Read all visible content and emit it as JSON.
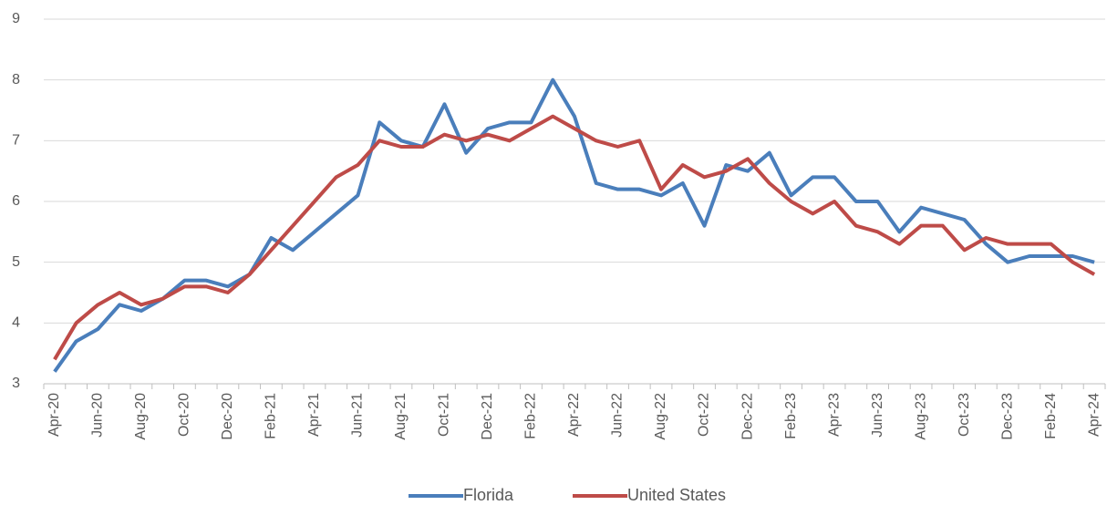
{
  "chart_data": {
    "type": "line",
    "categories": [
      "Apr-20",
      null,
      "Jun-20",
      null,
      "Aug-20",
      null,
      "Oct-20",
      null,
      "Dec-20",
      null,
      "Feb-21",
      null,
      "Apr-21",
      null,
      "Jun-21",
      null,
      "Aug-21",
      null,
      "Oct-21",
      null,
      "Dec-21",
      null,
      "Feb-22",
      null,
      "Apr-22",
      null,
      "Jun-22",
      null,
      "Aug-22",
      null,
      "Oct-22",
      null,
      "Dec-22",
      null,
      "Feb-23",
      null,
      "Apr-23",
      null,
      "Jun-23",
      null,
      "Aug-23",
      null,
      "Oct-23",
      null,
      "Dec-23",
      null,
      "Feb-24",
      null,
      "Apr-24"
    ],
    "series": [
      {
        "name": "Florida",
        "color": "#4a7ebb",
        "values": [
          3.2,
          3.7,
          3.9,
          4.3,
          4.2,
          4.4,
          4.7,
          4.7,
          4.6,
          4.8,
          5.4,
          5.2,
          5.5,
          5.8,
          6.1,
          7.3,
          7.0,
          6.9,
          7.6,
          6.8,
          7.2,
          7.3,
          7.3,
          8.0,
          7.4,
          6.3,
          6.2,
          6.2,
          6.1,
          6.3,
          5.6,
          6.6,
          6.5,
          6.8,
          6.1,
          6.4,
          6.4,
          6.0,
          6.0,
          5.5,
          5.9,
          5.8,
          5.7,
          5.3,
          5.0,
          5.1,
          5.1,
          5.1,
          5.0
        ]
      },
      {
        "name": "United States",
        "color": "#be4b48",
        "values": [
          3.4,
          4.0,
          4.3,
          4.5,
          4.3,
          4.4,
          4.6,
          4.6,
          4.5,
          4.8,
          5.2,
          5.6,
          6.0,
          6.4,
          6.6,
          7.0,
          6.9,
          6.9,
          7.1,
          7.0,
          7.1,
          7.0,
          7.2,
          7.4,
          7.2,
          7.0,
          6.9,
          7.0,
          6.2,
          6.6,
          6.4,
          6.5,
          6.7,
          6.3,
          6.0,
          5.8,
          6.0,
          5.6,
          5.5,
          5.3,
          5.6,
          5.6,
          5.2,
          5.4,
          5.3,
          5.3,
          5.3,
          5.0,
          4.8
        ]
      }
    ],
    "ylim": [
      3,
      9
    ],
    "yticks": [
      3,
      4,
      5,
      6,
      7,
      8,
      9
    ],
    "grid": true,
    "legend": "bottom"
  }
}
